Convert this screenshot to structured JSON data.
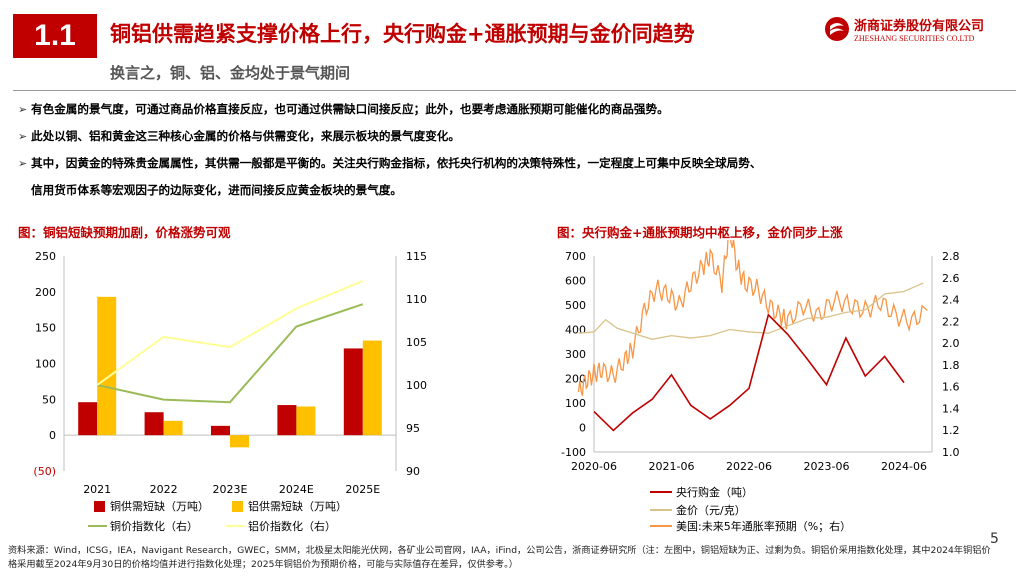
{
  "section_number": "1.1",
  "title": "铜铝供需趋紧支撑价格上行，央行购金+通胀预期与金价同趋势",
  "subtitle": "换言之，铜、铝、金均处于景气期间",
  "logo": {
    "cn": "浙商证券股份有限公司",
    "en": "ZHESHANG SECURITIES CO.LTD"
  },
  "bullets": [
    "有色金属的景气度，可通过商品价格直接反应，也可通过供需缺口间接反应；此外，也要考虑通胀预期可能催化的商品强势。",
    "此处以铜、铝和黄金这三种核心金属的价格与供需变化，来展示板块的景气度变化。",
    "其中，因黄金的特殊贵金属属性，其供需一般都是平衡的。关注央行购金指标，依托央行机构的决策特殊性，一定程度上可集中反映全球局势、",
    "信用货币体系等宏观因子的边际变化，进而间接反应黄金板块的景气度。"
  ],
  "chart_left_caption": "图：铜铝短缺预期加剧，价格涨势可观",
  "chart_right_caption": "图：央行购金+通胀预期均中枢上移，金价同步上涨",
  "footnote": "资料来源：Wind，ICSG，IEA，Navigant Research，GWEC，SMM，北极星太阳能光伏网，各矿业公司官网，IAA，iFind，公司公告，浙商证券研究所（注：左图中，铜铝短缺为正、过剩为负。铜铝价采用指数化处理，其中2024年铜铝价格采用截至2024年9月30日的价格均值并进行指数化处理；2025年铜铝价为预期价格，可能与实际值存在差异，仅供参考。）",
  "page_number": "5",
  "colors": {
    "red": "#c00000",
    "copper_bar": "#c00000",
    "aluminum_bar": "#ffc000",
    "copper_idx": "#9bbb59",
    "aluminum_idx": "#ffff99",
    "gold": "#d9c38a",
    "infl": "#f79646"
  },
  "chart_data": [
    {
      "type": "bar",
      "title": "图：铜铝短缺预期加剧，价格涨势可观",
      "categories": [
        "2021",
        "2022",
        "2023E",
        "2024E",
        "2025E"
      ],
      "y_left_ticks": [
        "250",
        "200",
        "150",
        "100",
        "50",
        "0",
        "(50)"
      ],
      "y_right_ticks": [
        "115",
        "110",
        "105",
        "100",
        "95",
        "90"
      ],
      "ylim_left": [
        -50,
        250
      ],
      "ylim_right": [
        90,
        115
      ],
      "series": [
        {
          "name": "铜供需短缺（万吨）",
          "kind": "bar",
          "axis": "left",
          "values": [
            46,
            32,
            13,
            42,
            121
          ]
        },
        {
          "name": "铝供需短缺（万吨）",
          "kind": "bar",
          "axis": "left",
          "values": [
            193,
            20,
            -17,
            40,
            132
          ]
        },
        {
          "name": "铜价指数化（右）",
          "kind": "line",
          "axis": "right",
          "values": [
            100,
            98.3,
            98,
            106.8,
            109.4
          ]
        },
        {
          "name": "铝价指数化（右）",
          "kind": "line",
          "axis": "right",
          "values": [
            100,
            105.6,
            104.4,
            108.9,
            112.1
          ]
        }
      ]
    },
    {
      "type": "line",
      "title": "图：央行购金+通胀预期均中枢上移，金价同步上涨",
      "x_ticks": [
        "2020-06",
        "2021-06",
        "2022-06",
        "2023-06",
        "2024-06"
      ],
      "y_left_ticks": [
        "700",
        "600",
        "500",
        "400",
        "300",
        "200",
        "100",
        "0",
        "-100"
      ],
      "y_right_ticks": [
        "2.8",
        "2.6",
        "2.4",
        "2.2",
        "2.0",
        "1.8",
        "1.6",
        "1.4",
        "1.2",
        "1.0"
      ],
      "ylim_left": [
        -100,
        700
      ],
      "ylim_right": [
        1.0,
        2.8
      ],
      "series": [
        {
          "name": "央行购金（吨）",
          "axis": "left",
          "x": [
            2020.5,
            2020.75,
            2021.0,
            2021.25,
            2021.5,
            2021.75,
            2022.0,
            2022.25,
            2022.5,
            2022.75,
            2023.0,
            2023.25,
            2023.5,
            2023.75,
            2024.0,
            2024.25,
            2024.5
          ],
          "values": [
            65,
            -12,
            60,
            115,
            215,
            90,
            35,
            90,
            160,
            460,
            380,
            280,
            175,
            365,
            210,
            290,
            183
          ]
        },
        {
          "name": "金价（元/克）",
          "axis": "left",
          "x": [
            2020.3,
            2020.5,
            2020.65,
            2020.8,
            2021.0,
            2021.25,
            2021.5,
            2021.75,
            2022.0,
            2022.25,
            2022.5,
            2022.75,
            2023.0,
            2023.25,
            2023.5,
            2023.75,
            2024.0,
            2024.25,
            2024.5,
            2024.75
          ],
          "values": [
            385,
            390,
            440,
            405,
            385,
            360,
            375,
            365,
            375,
            400,
            390,
            385,
            415,
            445,
            450,
            470,
            480,
            545,
            555,
            590
          ]
        },
        {
          "name": "美国:未来5年通胀率预期（%；右）",
          "axis": "right",
          "x": [
            2020.3,
            2020.4,
            2020.5,
            2020.6,
            2020.75,
            2020.9,
            2021.0,
            2021.15,
            2021.3,
            2021.45,
            2021.6,
            2021.75,
            2021.9,
            2022.0,
            2022.15,
            2022.25,
            2022.35,
            2022.45,
            2022.6,
            2022.75,
            2022.9,
            2023.0,
            2023.2,
            2023.4,
            2023.6,
            2023.8,
            2024.0,
            2024.2,
            2024.4,
            2024.6,
            2024.8
          ],
          "values": [
            1.55,
            1.65,
            1.72,
            1.75,
            1.7,
            1.85,
            1.95,
            2.3,
            2.5,
            2.45,
            2.35,
            2.55,
            2.7,
            2.8,
            2.55,
            3.05,
            2.7,
            2.55,
            2.5,
            2.35,
            2.25,
            2.2,
            2.35,
            2.25,
            2.4,
            2.35,
            2.3,
            2.38,
            2.25,
            2.2,
            2.3
          ]
        }
      ]
    }
  ]
}
